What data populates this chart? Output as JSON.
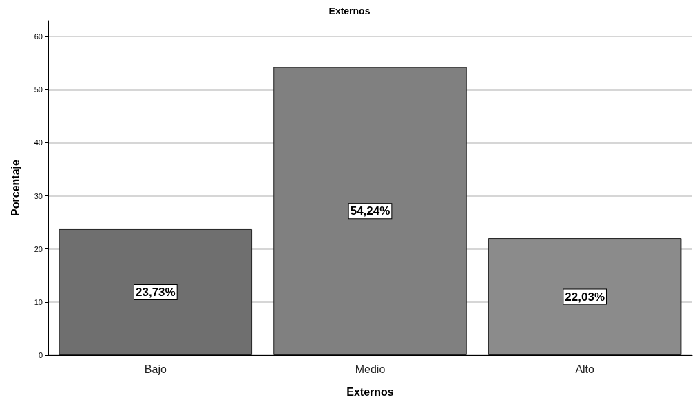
{
  "chart_data": {
    "type": "bar",
    "title": "Externos",
    "xlabel": "Externos",
    "ylabel": "Porcentaje",
    "categories": [
      "Bajo",
      "Medio",
      "Alto"
    ],
    "values": [
      23.73,
      54.24,
      22.03
    ],
    "colors": [
      "#6f6f6f",
      "#808080",
      "#8b8b8b"
    ],
    "value_labels": [
      "23,73%",
      "54,24%",
      "22,03%"
    ],
    "ylim": [
      0,
      63
    ],
    "yticks": [
      0,
      10,
      20,
      30,
      40,
      50,
      60
    ],
    "grid": "y"
  }
}
